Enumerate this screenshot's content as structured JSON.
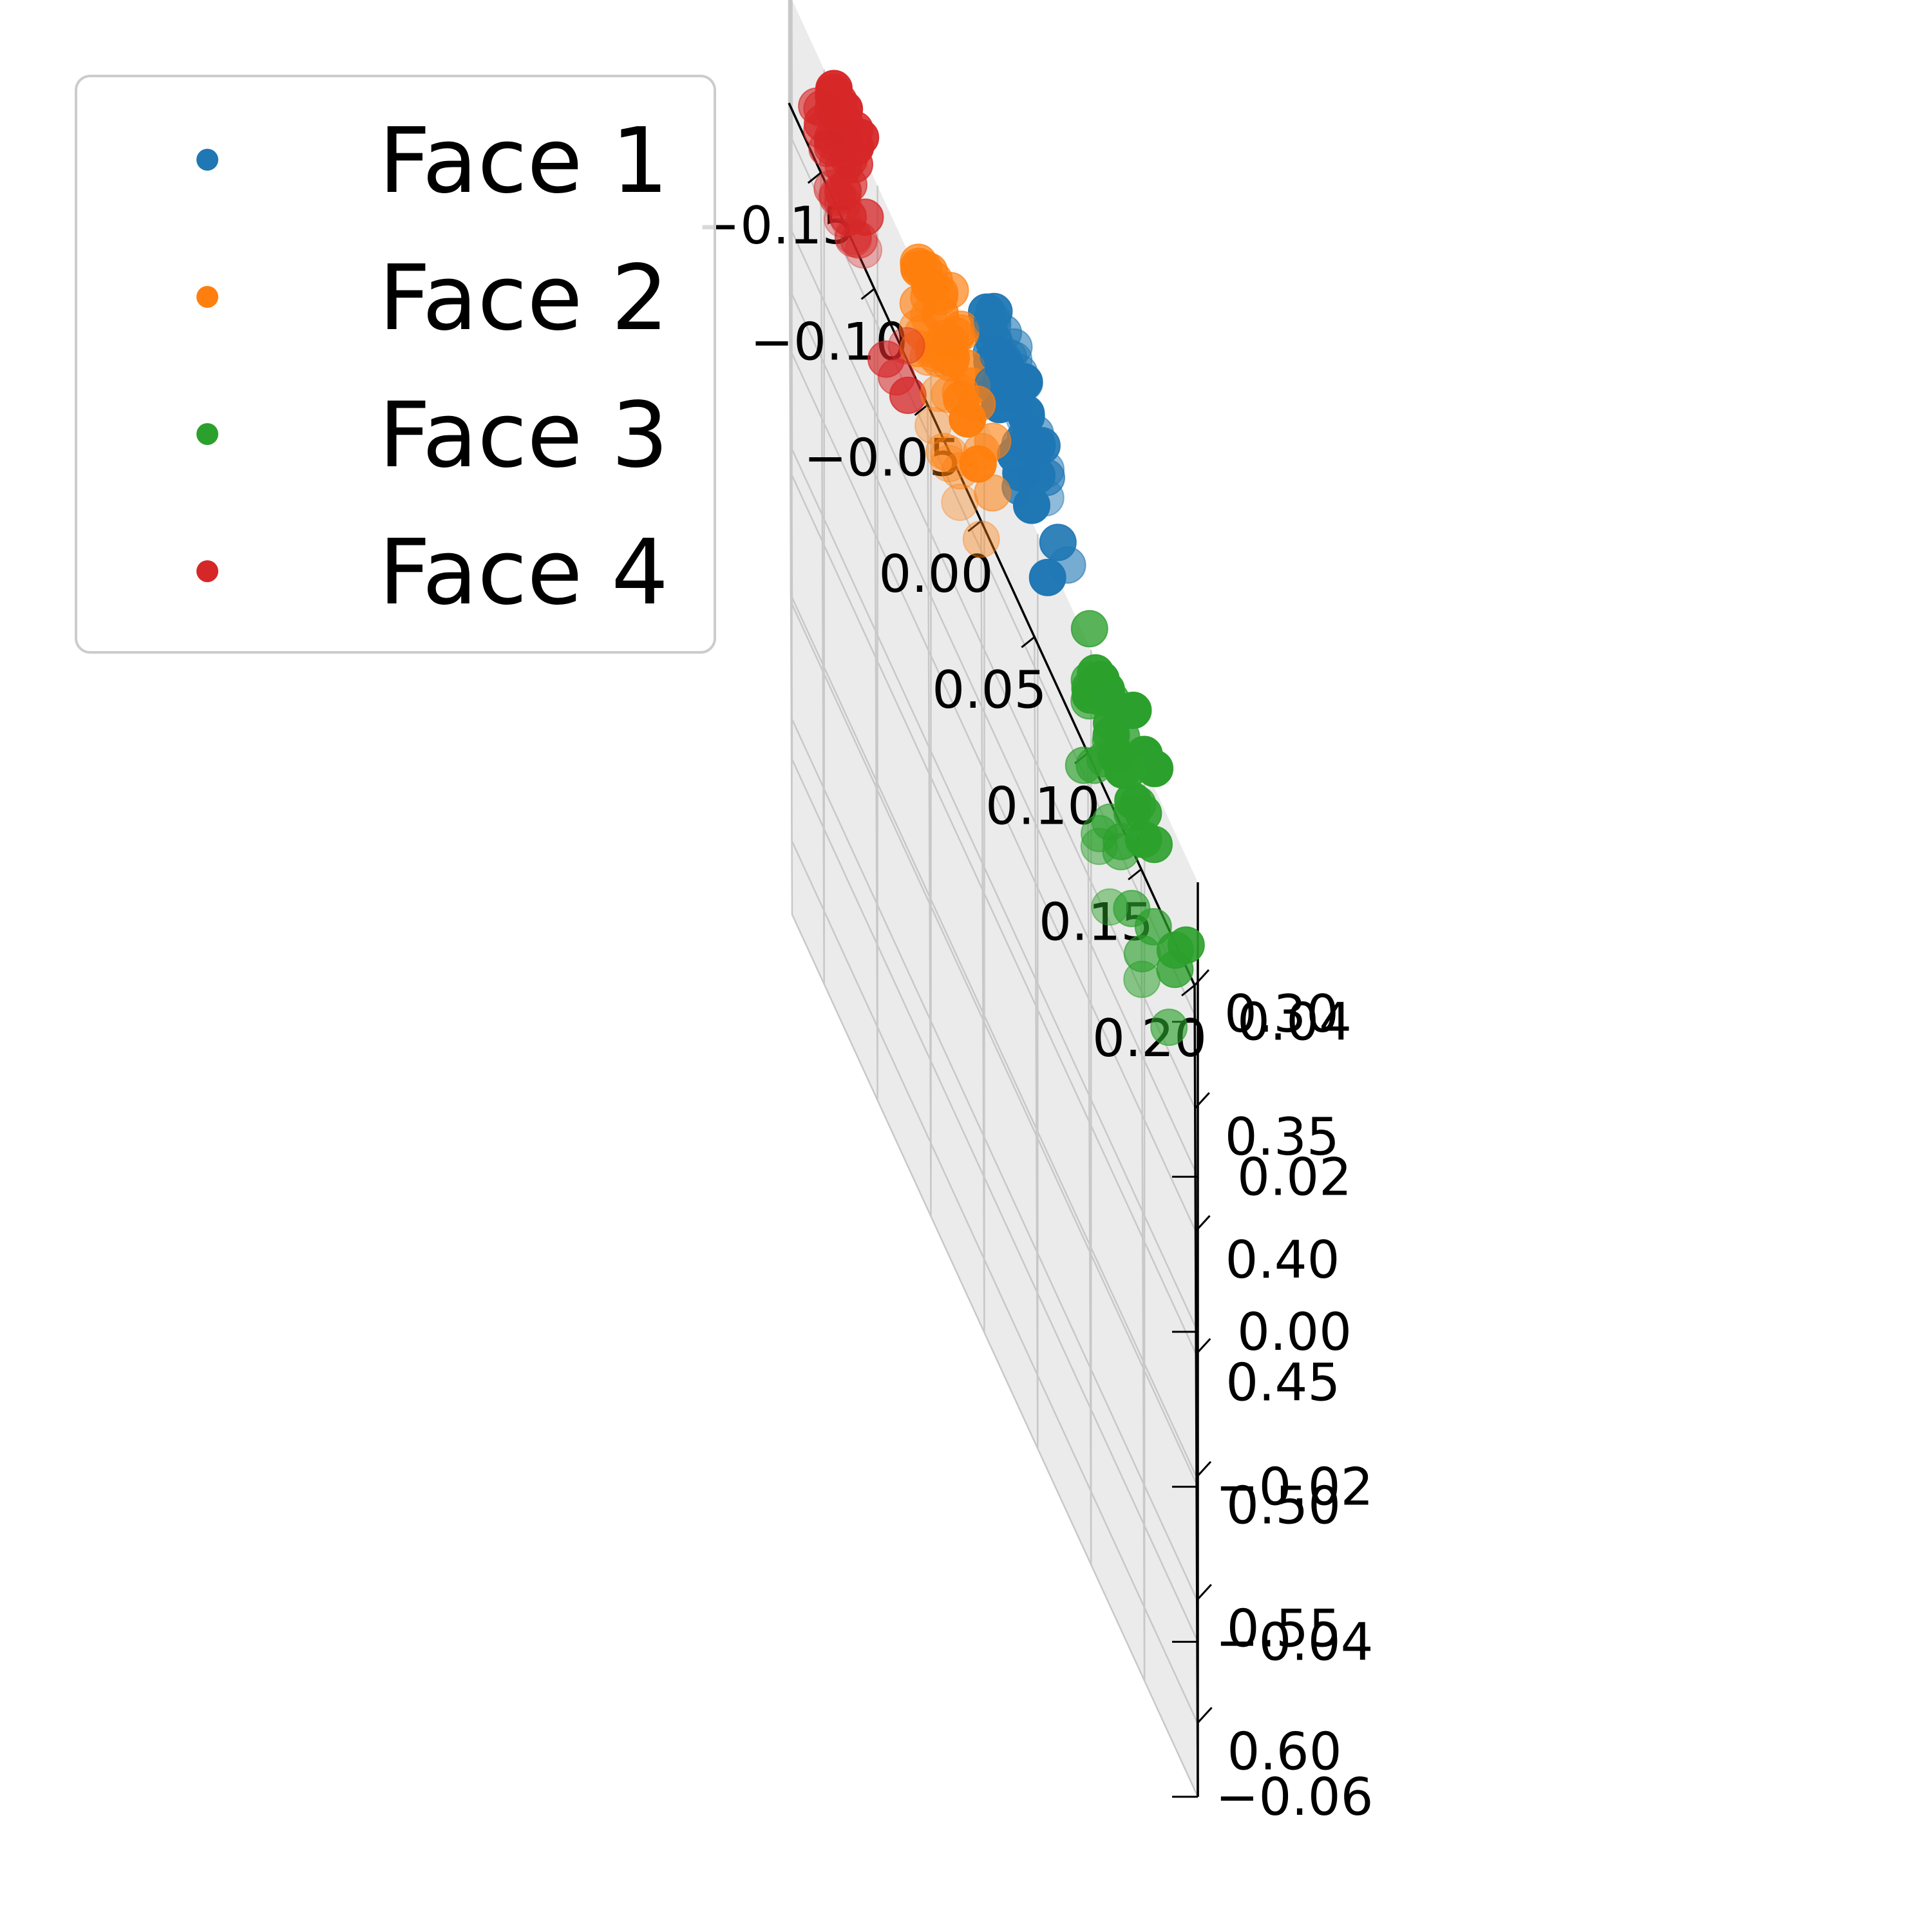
{
  "chart_data": {
    "type": "scatter",
    "projection": "3d",
    "title": "",
    "xlabel": "",
    "ylabel": "",
    "zlabel": "",
    "grid": true,
    "legend": {
      "placement": "top-left"
    },
    "xlim": [
      -0.18,
      0.2
    ],
    "ylim": [
      0.3,
      0.63
    ],
    "zlim": [
      -0.06,
      0.058
    ],
    "xticks": [
      "−0.15",
      "−0.10",
      "−0.05",
      "0.00",
      "0.05",
      "0.10",
      "0.15",
      "0.20"
    ],
    "yticks": [
      "0.30",
      "0.35",
      "0.40",
      "0.45",
      "0.50",
      "0.55",
      "0.60"
    ],
    "zticks": [
      "−0.06",
      "−0.04",
      "−0.02",
      "0.00",
      "0.02",
      "0.04"
    ],
    "series": [
      {
        "name": "Face 1",
        "color": "#1f77b4",
        "points": [
          [
            0.038,
            0.57,
            0.055
          ],
          [
            0.05,
            0.575,
            0.052
          ],
          [
            0.02,
            0.58,
            0.055
          ],
          [
            0.04,
            0.56,
            0.048
          ],
          [
            0.005,
            0.55,
            0.046
          ],
          [
            0.01,
            0.56,
            0.045
          ],
          [
            0.003,
            0.54,
            0.044
          ],
          [
            0.015,
            0.56,
            0.042
          ],
          [
            0.01,
            0.53,
            0.043
          ],
          [
            0.03,
            0.56,
            0.04
          ],
          [
            0.04,
            0.54,
            0.042
          ],
          [
            0.045,
            0.56,
            0.038
          ],
          [
            0.008,
            0.54,
            0.039
          ],
          [
            0.02,
            0.53,
            0.037
          ],
          [
            0.035,
            0.55,
            0.036
          ],
          [
            0.05,
            0.54,
            0.037
          ],
          [
            0.04,
            0.53,
            0.035
          ],
          [
            0.01,
            0.52,
            0.036
          ],
          [
            0.03,
            0.52,
            0.034
          ],
          [
            0.055,
            0.52,
            0.036
          ],
          [
            0.06,
            0.55,
            0.03
          ],
          [
            0.07,
            0.52,
            0.028
          ],
          [
            0.02,
            0.5,
            0.025
          ],
          [
            0.01,
            0.49,
            0.022
          ],
          [
            0.03,
            0.48,
            0.024
          ],
          [
            0.04,
            0.48,
            0.02
          ],
          [
            0.008,
            0.47,
            0.018
          ],
          [
            0.015,
            0.47,
            0.015
          ],
          [
            0.025,
            0.46,
            0.015
          ],
          [
            0.035,
            0.48,
            0.012
          ],
          [
            0.01,
            0.46,
            0.012
          ],
          [
            0.02,
            0.45,
            0.012
          ],
          [
            0.035,
            0.45,
            0.008
          ],
          [
            0.03,
            0.44,
            0.01
          ],
          [
            0.02,
            0.43,
            0.008
          ],
          [
            0.01,
            0.44,
            0.005
          ],
          [
            0.06,
            0.44,
            0.008
          ],
          [
            0.015,
            0.42,
            0.004
          ],
          [
            0.04,
            0.42,
            0.0
          ],
          [
            0.02,
            0.4,
            0.002
          ],
          [
            0.01,
            0.4,
            0.0
          ],
          [
            0.03,
            0.39,
            0.0
          ],
          [
            0.05,
            0.4,
            -0.002
          ],
          [
            0.035,
            0.38,
            -0.005
          ],
          [
            0.025,
            0.38,
            -0.006
          ],
          [
            0.03,
            0.37,
            -0.008
          ],
          [
            0.04,
            0.37,
            -0.008
          ],
          [
            0.06,
            0.38,
            -0.01
          ],
          [
            0.08,
            0.4,
            -0.01
          ],
          [
            0.01,
            0.36,
            -0.012
          ],
          [
            0.02,
            0.35,
            -0.018
          ],
          [
            0.06,
            0.36,
            -0.02
          ],
          [
            0.04,
            0.34,
            -0.022
          ]
        ]
      },
      {
        "name": "Face 2",
        "color": "#ff7f0e",
        "points": [
          [
            -0.015,
            0.55,
            0.028
          ],
          [
            -0.03,
            0.53,
            0.025
          ],
          [
            -0.005,
            0.54,
            0.022
          ],
          [
            -0.05,
            0.51,
            0.022
          ],
          [
            -0.06,
            0.5,
            0.018
          ],
          [
            -0.04,
            0.49,
            0.015
          ],
          [
            -0.06,
            0.48,
            0.012
          ],
          [
            -0.055,
            0.47,
            0.01
          ],
          [
            -0.05,
            0.46,
            0.008
          ],
          [
            -0.02,
            0.49,
            0.01
          ],
          [
            -0.03,
            0.47,
            0.008
          ],
          [
            -0.015,
            0.46,
            0.006
          ],
          [
            -0.04,
            0.45,
            0.005
          ],
          [
            -0.025,
            0.45,
            0.004
          ],
          [
            -0.06,
            0.45,
            0.003
          ],
          [
            -0.01,
            0.45,
            0.002
          ],
          [
            -0.03,
            0.43,
            0.002
          ],
          [
            -0.045,
            0.44,
            0.002
          ],
          [
            -0.02,
            0.43,
            0.0
          ],
          [
            -0.005,
            0.44,
            -0.002
          ],
          [
            -0.04,
            0.42,
            -0.005
          ],
          [
            -0.05,
            0.42,
            -0.008
          ],
          [
            -0.02,
            0.4,
            -0.01
          ],
          [
            -0.035,
            0.41,
            -0.012
          ],
          [
            0.01,
            0.4,
            -0.015
          ],
          [
            -0.06,
            0.41,
            -0.015
          ],
          [
            -0.04,
            0.4,
            -0.018
          ],
          [
            -0.05,
            0.39,
            -0.02
          ],
          [
            -0.03,
            0.39,
            -0.02
          ],
          [
            -0.06,
            0.4,
            -0.024
          ],
          [
            -0.02,
            0.38,
            -0.024
          ],
          [
            -0.045,
            0.38,
            -0.026
          ],
          [
            0.01,
            0.38,
            -0.028
          ],
          [
            -0.055,
            0.37,
            -0.03
          ],
          [
            -0.04,
            0.36,
            -0.032
          ],
          [
            0.0,
            0.36,
            -0.032
          ],
          [
            -0.06,
            0.36,
            -0.034
          ],
          [
            -0.045,
            0.35,
            -0.036
          ],
          [
            -0.05,
            0.35,
            -0.038
          ],
          [
            -0.03,
            0.34,
            -0.04
          ],
          [
            -0.04,
            0.33,
            -0.046
          ],
          [
            -0.02,
            0.33,
            -0.05
          ],
          [
            -0.035,
            0.33,
            -0.052
          ],
          [
            -0.03,
            0.32,
            -0.054
          ],
          [
            0.0,
            0.32,
            -0.056
          ],
          [
            -0.045,
            0.31,
            -0.058
          ],
          [
            -0.03,
            0.305,
            -0.06
          ],
          [
            -0.02,
            0.305,
            -0.062
          ]
        ]
      },
      {
        "name": "Face 3",
        "color": "#2ca02c",
        "points": [
          [
            0.15,
            0.6,
            0.05
          ],
          [
            0.16,
            0.59,
            0.048
          ],
          [
            0.13,
            0.6,
            0.042
          ],
          [
            0.14,
            0.56,
            0.04
          ],
          [
            0.11,
            0.56,
            0.035
          ],
          [
            0.115,
            0.55,
            0.032
          ],
          [
            0.1,
            0.56,
            0.03
          ],
          [
            0.105,
            0.54,
            0.028
          ],
          [
            0.12,
            0.54,
            0.026
          ],
          [
            0.115,
            0.53,
            0.025
          ],
          [
            0.13,
            0.54,
            0.024
          ],
          [
            0.14,
            0.54,
            0.022
          ],
          [
            0.15,
            0.54,
            0.02
          ],
          [
            0.125,
            0.53,
            0.02
          ],
          [
            0.11,
            0.52,
            0.02
          ],
          [
            0.135,
            0.52,
            0.018
          ],
          [
            0.15,
            0.52,
            0.017
          ],
          [
            0.12,
            0.51,
            0.015
          ],
          [
            0.1,
            0.51,
            0.015
          ],
          [
            0.16,
            0.52,
            0.016
          ],
          [
            0.19,
            0.52,
            0.012
          ],
          [
            0.12,
            0.48,
            0.01
          ],
          [
            0.1,
            0.47,
            0.01
          ],
          [
            0.13,
            0.47,
            0.005
          ],
          [
            0.145,
            0.48,
            0.004
          ],
          [
            0.18,
            0.5,
            0.002
          ],
          [
            0.11,
            0.45,
            0.0
          ],
          [
            0.125,
            0.46,
            -0.002
          ],
          [
            0.1,
            0.45,
            -0.003
          ],
          [
            0.14,
            0.46,
            -0.005
          ],
          [
            0.12,
            0.44,
            -0.008
          ],
          [
            0.18,
            0.47,
            -0.01
          ],
          [
            0.1,
            0.43,
            -0.012
          ],
          [
            0.115,
            0.43,
            -0.015
          ],
          [
            0.13,
            0.44,
            -0.018
          ],
          [
            0.16,
            0.44,
            -0.02
          ],
          [
            0.105,
            0.42,
            -0.022
          ],
          [
            0.095,
            0.42,
            -0.025
          ],
          [
            0.12,
            0.41,
            -0.028
          ],
          [
            0.14,
            0.42,
            -0.03
          ],
          [
            0.13,
            0.4,
            -0.032
          ],
          [
            0.15,
            0.41,
            -0.036
          ],
          [
            0.175,
            0.41,
            -0.038
          ],
          [
            0.11,
            0.38,
            -0.042
          ],
          [
            0.11,
            0.36,
            -0.05
          ],
          [
            0.15,
            0.37,
            -0.052
          ],
          [
            0.12,
            0.35,
            -0.058
          ]
        ]
      },
      {
        "name": "Face 4",
        "color": "#d62728",
        "points": [
          [
            -0.14,
            0.54,
            0.03
          ],
          [
            -0.12,
            0.545,
            0.03
          ],
          [
            -0.115,
            0.53,
            0.028
          ],
          [
            -0.13,
            0.52,
            0.024
          ],
          [
            -0.14,
            0.51,
            0.02
          ],
          [
            -0.12,
            0.5,
            0.018
          ],
          [
            -0.13,
            0.5,
            0.016
          ],
          [
            -0.135,
            0.49,
            0.014
          ],
          [
            -0.125,
            0.49,
            0.012
          ],
          [
            -0.14,
            0.48,
            0.01
          ],
          [
            -0.13,
            0.47,
            0.008
          ],
          [
            -0.135,
            0.47,
            0.006
          ],
          [
            -0.12,
            0.47,
            0.004
          ],
          [
            -0.14,
            0.46,
            0.002
          ],
          [
            -0.125,
            0.46,
            0.0
          ],
          [
            -0.13,
            0.45,
            -0.002
          ],
          [
            -0.11,
            0.46,
            -0.003
          ],
          [
            -0.15,
            0.45,
            -0.006
          ],
          [
            -0.14,
            0.44,
            -0.008
          ],
          [
            -0.13,
            0.43,
            -0.012
          ],
          [
            -0.14,
            0.42,
            -0.015
          ],
          [
            -0.125,
            0.42,
            -0.016
          ],
          [
            -0.155,
            0.41,
            -0.018
          ],
          [
            -0.15,
            0.4,
            -0.02
          ],
          [
            -0.14,
            0.4,
            -0.022
          ],
          [
            -0.135,
            0.395,
            -0.024
          ],
          [
            -0.07,
            0.46,
            -0.014
          ],
          [
            -0.15,
            0.39,
            -0.026
          ],
          [
            -0.13,
            0.39,
            -0.028
          ],
          [
            -0.09,
            0.42,
            -0.028
          ],
          [
            -0.145,
            0.38,
            -0.03
          ],
          [
            -0.13,
            0.37,
            -0.034
          ],
          [
            -0.125,
            0.37,
            -0.036
          ],
          [
            -0.115,
            0.37,
            -0.036
          ],
          [
            -0.08,
            0.38,
            -0.04
          ],
          [
            -0.14,
            0.36,
            -0.04
          ],
          [
            -0.13,
            0.35,
            -0.042
          ],
          [
            -0.125,
            0.345,
            -0.044
          ],
          [
            -0.135,
            0.34,
            -0.046
          ],
          [
            -0.12,
            0.33,
            -0.05
          ],
          [
            -0.135,
            0.32,
            -0.052
          ],
          [
            -0.07,
            0.32,
            -0.052
          ],
          [
            -0.12,
            0.31,
            -0.056
          ],
          [
            -0.11,
            0.3,
            -0.058
          ],
          [
            -0.13,
            0.3,
            -0.06
          ]
        ]
      }
    ]
  }
}
